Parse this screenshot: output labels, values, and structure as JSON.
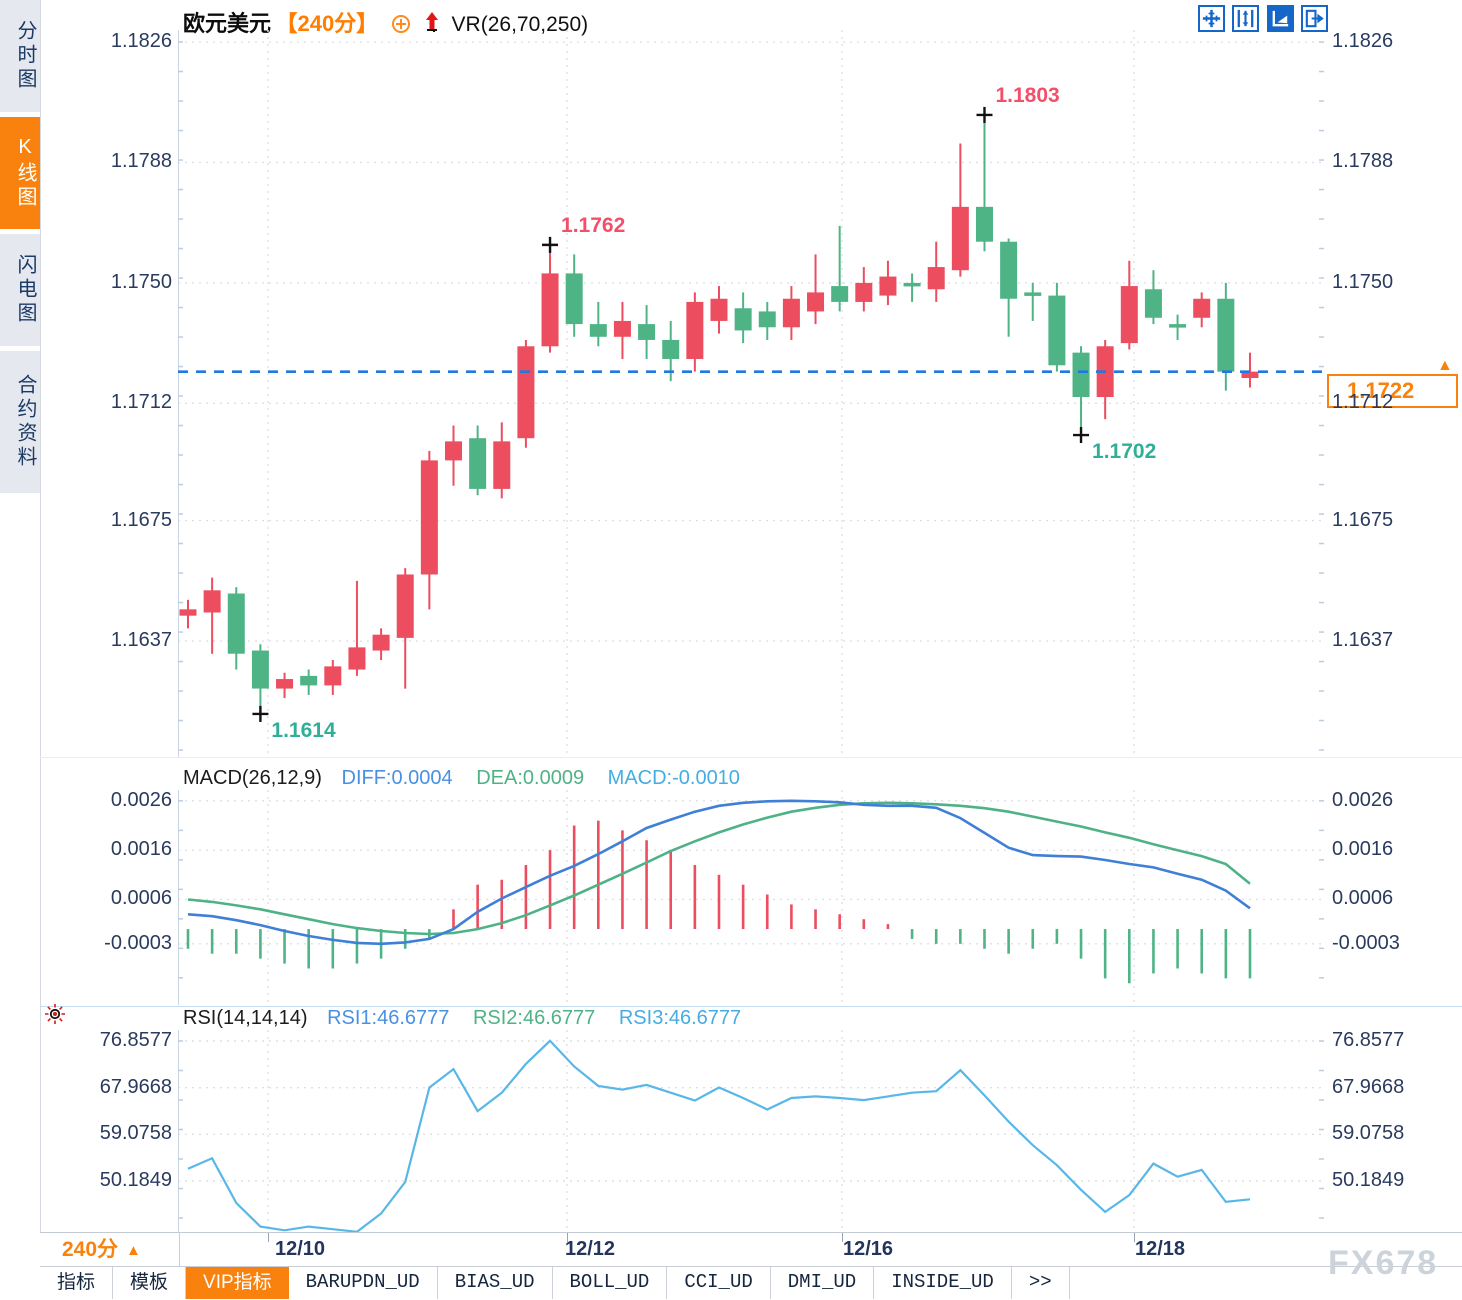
{
  "colors": {
    "up": "#EC4D5F",
    "down": "#4FB485",
    "annotation_high": "#F2506A",
    "annotation_low": "#2FAF97",
    "diff_line": "#3F7FD6",
    "dea_line": "#4FB286",
    "rsi_line": "#58B7E8",
    "current_price_line": "#1F7AE0",
    "accent_orange": "#F8820D",
    "title_orange": "#FF7E00",
    "grid": "#DCE0E6",
    "tick": "#B9CDE4",
    "axis_text": "#2A3B5F"
  },
  "sidebar": {
    "items": [
      {
        "label": "分时图",
        "active": false
      },
      {
        "label": "K线图",
        "active": true
      },
      {
        "label": "闪电图",
        "active": false
      },
      {
        "label": "合约资料",
        "active": false
      }
    ]
  },
  "header": {
    "symbol": "欧元美元",
    "period": "【240分】",
    "overlay_indicator": "VR(26,70,250)"
  },
  "toolbar": {
    "icons": [
      "crosshair-move-icon",
      "axis-scale-icon",
      "pointer-tool-icon",
      "pan-right-icon"
    ]
  },
  "price_tag": {
    "value": "1.1722",
    "arrow": "▲"
  },
  "footer": {
    "period_selector": "240分",
    "period_caret": "▲",
    "tabs": [
      {
        "label": "指标",
        "cn": true,
        "active": false
      },
      {
        "label": "模板",
        "cn": true,
        "active": false
      },
      {
        "label": "VIP指标",
        "cn": true,
        "active": true
      },
      {
        "label": "BARUPDN_UD",
        "cn": false,
        "active": false
      },
      {
        "label": "BIAS_UD",
        "cn": false,
        "active": false
      },
      {
        "label": "BOLL_UD",
        "cn": false,
        "active": false
      },
      {
        "label": "CCI_UD",
        "cn": false,
        "active": false
      },
      {
        "label": "DMI_UD",
        "cn": false,
        "active": false
      },
      {
        "label": "INSIDE_UD",
        "cn": false,
        "active": false
      },
      {
        "label": ">>",
        "cn": false,
        "active": false
      }
    ],
    "watermark": "FX678"
  },
  "chart_data": [
    {
      "type": "candlestick",
      "title": "欧元美元 240分",
      "y_axis": {
        "labels": [
          "1.1826",
          "1.1788",
          "1.1750",
          "1.1712",
          "1.1675",
          "1.1637"
        ],
        "values": [
          1.1826,
          1.1788,
          1.175,
          1.1712,
          1.1675,
          1.1637
        ]
      },
      "x_axis": {
        "labels": [
          "12/10",
          "12/12",
          "12/16",
          "12/18"
        ]
      },
      "current_price": 1.1722,
      "candles": [
        {
          "o": 1.1645,
          "h": 1.165,
          "l": 1.1641,
          "c": 1.1647
        },
        {
          "o": 1.1646,
          "h": 1.1657,
          "l": 1.1633,
          "c": 1.1653
        },
        {
          "o": 1.1652,
          "h": 1.1654,
          "l": 1.1628,
          "c": 1.1633
        },
        {
          "o": 1.1634,
          "h": 1.1636,
          "l": 1.1614,
          "c": 1.1622
        },
        {
          "o": 1.1622,
          "h": 1.1627,
          "l": 1.1619,
          "c": 1.1625
        },
        {
          "o": 1.1626,
          "h": 1.1628,
          "l": 1.162,
          "c": 1.1623
        },
        {
          "o": 1.1623,
          "h": 1.1631,
          "l": 1.162,
          "c": 1.1629
        },
        {
          "o": 1.1628,
          "h": 1.1656,
          "l": 1.1626,
          "c": 1.1635
        },
        {
          "o": 1.1634,
          "h": 1.1641,
          "l": 1.1631,
          "c": 1.1639
        },
        {
          "o": 1.1638,
          "h": 1.166,
          "l": 1.1622,
          "c": 1.1658
        },
        {
          "o": 1.1658,
          "h": 1.1697,
          "l": 1.1647,
          "c": 1.1694
        },
        {
          "o": 1.1694,
          "h": 1.1705,
          "l": 1.1686,
          "c": 1.17
        },
        {
          "o": 1.1701,
          "h": 1.1705,
          "l": 1.1683,
          "c": 1.1685
        },
        {
          "o": 1.1685,
          "h": 1.1706,
          "l": 1.1682,
          "c": 1.17
        },
        {
          "o": 1.1701,
          "h": 1.1732,
          "l": 1.1698,
          "c": 1.173
        },
        {
          "o": 1.173,
          "h": 1.1762,
          "l": 1.1728,
          "c": 1.1753
        },
        {
          "o": 1.1753,
          "h": 1.1759,
          "l": 1.1733,
          "c": 1.1737
        },
        {
          "o": 1.1737,
          "h": 1.1744,
          "l": 1.173,
          "c": 1.1733
        },
        {
          "o": 1.1733,
          "h": 1.1744,
          "l": 1.1726,
          "c": 1.1738
        },
        {
          "o": 1.1737,
          "h": 1.1743,
          "l": 1.1726,
          "c": 1.1732
        },
        {
          "o": 1.1732,
          "h": 1.1738,
          "l": 1.1719,
          "c": 1.1726
        },
        {
          "o": 1.1726,
          "h": 1.1747,
          "l": 1.1722,
          "c": 1.1744
        },
        {
          "o": 1.1738,
          "h": 1.1749,
          "l": 1.1734,
          "c": 1.1745
        },
        {
          "o": 1.1742,
          "h": 1.1747,
          "l": 1.1731,
          "c": 1.1735
        },
        {
          "o": 1.1741,
          "h": 1.1744,
          "l": 1.1732,
          "c": 1.1736
        },
        {
          "o": 1.1736,
          "h": 1.1749,
          "l": 1.1732,
          "c": 1.1745
        },
        {
          "o": 1.1741,
          "h": 1.1759,
          "l": 1.1737,
          "c": 1.1747
        },
        {
          "o": 1.1749,
          "h": 1.1768,
          "l": 1.1741,
          "c": 1.1744
        },
        {
          "o": 1.1744,
          "h": 1.1755,
          "l": 1.1741,
          "c": 1.175
        },
        {
          "o": 1.1746,
          "h": 1.1757,
          "l": 1.1743,
          "c": 1.1752
        },
        {
          "o": 1.175,
          "h": 1.1753,
          "l": 1.1744,
          "c": 1.1749
        },
        {
          "o": 1.1748,
          "h": 1.1763,
          "l": 1.1744,
          "c": 1.1755
        },
        {
          "o": 1.1754,
          "h": 1.1794,
          "l": 1.1752,
          "c": 1.1774
        },
        {
          "o": 1.1774,
          "h": 1.1803,
          "l": 1.176,
          "c": 1.1763
        },
        {
          "o": 1.1763,
          "h": 1.1764,
          "l": 1.1733,
          "c": 1.1745
        },
        {
          "o": 1.1747,
          "h": 1.175,
          "l": 1.1738,
          "c": 1.1746
        },
        {
          "o": 1.1746,
          "h": 1.175,
          "l": 1.1722,
          "c": 1.1724
        },
        {
          "o": 1.1728,
          "h": 1.173,
          "l": 1.1702,
          "c": 1.1714
        },
        {
          "o": 1.1714,
          "h": 1.1732,
          "l": 1.1707,
          "c": 1.173
        },
        {
          "o": 1.1731,
          "h": 1.1757,
          "l": 1.1729,
          "c": 1.1749
        },
        {
          "o": 1.1748,
          "h": 1.1754,
          "l": 1.1737,
          "c": 1.1739
        },
        {
          "o": 1.1737,
          "h": 1.174,
          "l": 1.1732,
          "c": 1.1736
        },
        {
          "o": 1.1739,
          "h": 1.1747,
          "l": 1.1736,
          "c": 1.1745
        },
        {
          "o": 1.1745,
          "h": 1.175,
          "l": 1.1716,
          "c": 1.1722
        },
        {
          "o": 1.172,
          "h": 1.1728,
          "l": 1.1717,
          "c": 1.1722
        }
      ],
      "annotations": [
        {
          "index": 15,
          "price": "1.1762",
          "side": "high"
        },
        {
          "index": 33,
          "price": "1.1803",
          "side": "high"
        },
        {
          "index": 3,
          "price": "1.1614",
          "side": "low"
        },
        {
          "index": 37,
          "price": "1.1702",
          "side": "low"
        }
      ]
    },
    {
      "type": "macd",
      "params": "MACD(26,12,9)",
      "readouts": {
        "diff": "DIFF:0.0004",
        "dea": "DEA:0.0009",
        "macd": "MACD:-0.0010"
      },
      "y_axis": {
        "labels": [
          "0.0026",
          "0.0016",
          "0.0006",
          "-0.0003"
        ],
        "values": [
          0.0026,
          0.0016,
          0.0006,
          -0.0003
        ]
      },
      "diff": [
        0.0003,
        0.00026,
        0.00018,
        8e-05,
        -4e-05,
        -0.00014,
        -0.00022,
        -0.00028,
        -0.0003,
        -0.00027,
        -0.0002,
        0.0,
        0.00035,
        0.00062,
        0.00085,
        0.00108,
        0.00128,
        0.00152,
        0.00178,
        0.00205,
        0.00222,
        0.00238,
        0.0025,
        0.00256,
        0.00259,
        0.0026,
        0.00259,
        0.00257,
        0.00252,
        0.0025,
        0.0025,
        0.00246,
        0.00225,
        0.00195,
        0.00165,
        0.0015,
        0.00148,
        0.00147,
        0.0014,
        0.00132,
        0.00125,
        0.00112,
        0.001,
        0.00078,
        0.00042
      ],
      "dea": [
        0.0006,
        0.00055,
        0.00048,
        0.0004,
        0.0003,
        0.0002,
        0.0001,
        2e-05,
        -4e-05,
        -8e-05,
        -0.0001,
        -8e-05,
        0.0,
        0.00012,
        0.00028,
        0.00048,
        0.00068,
        0.0009,
        0.00112,
        0.00135,
        0.00158,
        0.00178,
        0.00196,
        0.00212,
        0.00226,
        0.00238,
        0.00246,
        0.00252,
        0.00255,
        0.00256,
        0.00255,
        0.00253,
        0.0025,
        0.00245,
        0.00238,
        0.00228,
        0.00218,
        0.00208,
        0.00196,
        0.00185,
        0.00172,
        0.0016,
        0.00148,
        0.00132,
        0.00092
      ],
      "hist": [
        -0.0004,
        -0.0005,
        -0.0005,
        -0.0006,
        -0.0007,
        -0.0008,
        -0.0008,
        -0.0007,
        -0.0006,
        -0.0004,
        -0.0002,
        0.0004,
        0.0009,
        0.001,
        0.0013,
        0.0016,
        0.0021,
        0.0022,
        0.002,
        0.0018,
        0.0016,
        0.0013,
        0.0011,
        0.0009,
        0.0007,
        0.0005,
        0.0004,
        0.0003,
        0.0002,
        0.0001,
        -0.0002,
        -0.0003,
        -0.0003,
        -0.0004,
        -0.0005,
        -0.0004,
        -0.0003,
        -0.0006,
        -0.001,
        -0.0011,
        -0.0009,
        -0.0008,
        -0.0009,
        -0.001,
        -0.001
      ]
    },
    {
      "type": "rsi",
      "params": "RSI(14,14,14)",
      "readouts": [
        "RSI1:46.6777",
        "RSI2:46.6777",
        "RSI3:46.6777"
      ],
      "y_axis": {
        "labels": [
          "76.8577",
          "67.9668",
          "59.0758",
          "50.1849"
        ],
        "values": [
          76.8577,
          67.9668,
          59.0758,
          50.1849
        ]
      },
      "values": [
        52.5,
        54.5,
        46.0,
        41.5,
        40.8,
        41.5,
        41.0,
        40.5,
        44.0,
        50.0,
        68.0,
        71.5,
        63.5,
        67.0,
        72.5,
        76.9,
        72.0,
        68.3,
        67.6,
        68.5,
        67.0,
        65.5,
        68.0,
        66.0,
        63.8,
        66.0,
        66.3,
        66.0,
        65.6,
        66.3,
        67.0,
        67.3,
        71.3,
        66.5,
        61.5,
        57.0,
        53.2,
        48.5,
        44.3,
        47.5,
        53.5,
        51.0,
        52.3,
        46.2,
        46.7
      ]
    }
  ]
}
